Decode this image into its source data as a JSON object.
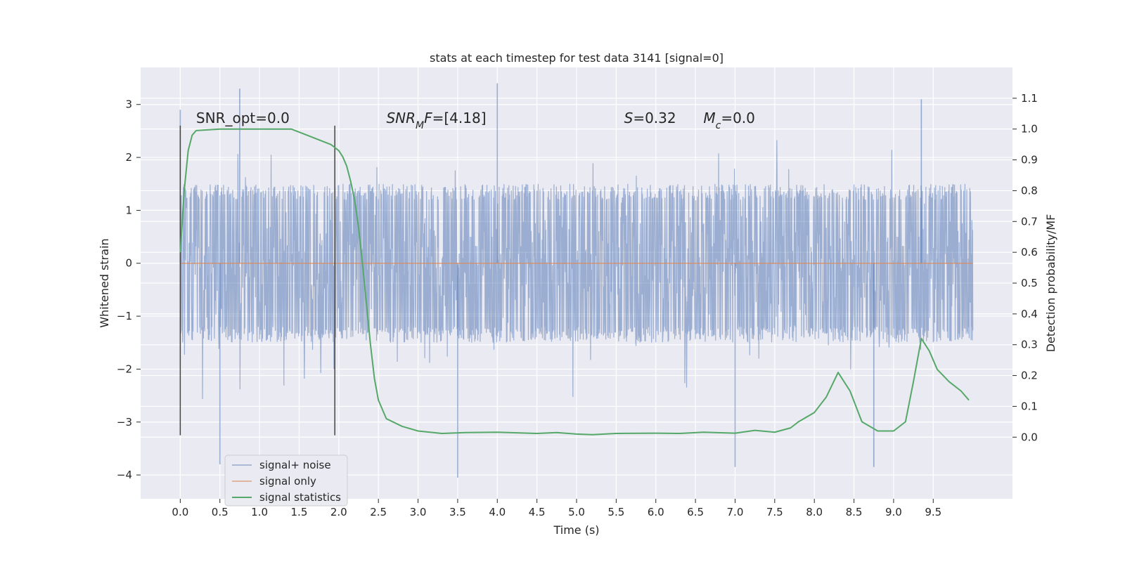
{
  "chart_data": {
    "type": "line",
    "title": "stats at each timestep for test data 3141 [signal=0]",
    "xlabel": "Time (s)",
    "ylabel_left": "Whitened strain",
    "ylabel_right": "Detection probability/MF",
    "xlim": [
      -0.5,
      10.5
    ],
    "ylim_left": [
      -4.45,
      3.7
    ],
    "ylim_right": [
      -0.2,
      1.2
    ],
    "x_ticks": [
      "0.0",
      "0.5",
      "1.0",
      "1.5",
      "2.0",
      "2.5",
      "3.0",
      "3.5",
      "4.0",
      "4.5",
      "5.0",
      "5.5",
      "6.0",
      "6.5",
      "7.0",
      "7.5",
      "8.0",
      "8.5",
      "9.0",
      "9.5"
    ],
    "y_left_ticks": [
      "3",
      "2",
      "1",
      "0",
      "−1",
      "−2",
      "−3",
      "−4"
    ],
    "y_right_ticks": [
      "1.1",
      "1.0",
      "0.9",
      "0.8",
      "0.7",
      "0.6",
      "0.5",
      "0.4",
      "0.3",
      "0.2",
      "0.1",
      "0.0"
    ],
    "grid": true,
    "legend_position": "bottom-left",
    "series": [
      {
        "name": "signal+ noise",
        "color": "#4c72b0",
        "axis": "left",
        "x_range": [
          0.0,
          10.0
        ],
        "envelope_outer": [
          -3.0,
          3.0
        ],
        "envelope_inner": [
          -1.5,
          1.5
        ],
        "notable_peaks": [
          [
            0.0,
            2.9
          ],
          [
            0.75,
            3.3
          ],
          [
            4.0,
            3.4
          ],
          [
            9.35,
            3.1
          ],
          [
            0.5,
            -3.8
          ],
          [
            3.5,
            -4.05
          ],
          [
            7.0,
            -3.85
          ],
          [
            8.75,
            -3.85
          ]
        ]
      },
      {
        "name": "signal only",
        "color": "#dd8452",
        "axis": "left",
        "x": [
          0.0,
          10.0
        ],
        "values": [
          0.0,
          0.0
        ]
      },
      {
        "name": "signal statistics",
        "color": "#55a868",
        "axis": "right",
        "x": [
          0.0,
          0.05,
          0.1,
          0.15,
          0.2,
          0.5,
          1.0,
          1.4,
          1.6,
          1.8,
          1.9,
          2.0,
          2.05,
          2.1,
          2.15,
          2.2,
          2.25,
          2.3,
          2.35,
          2.4,
          2.45,
          2.5,
          2.6,
          2.8,
          3.0,
          3.3,
          3.6,
          4.0,
          4.5,
          4.75,
          5.0,
          5.2,
          5.5,
          6.0,
          6.3,
          6.6,
          7.0,
          7.25,
          7.5,
          7.7,
          7.8,
          8.0,
          8.15,
          8.3,
          8.45,
          8.6,
          8.8,
          9.0,
          9.15,
          9.25,
          9.35,
          9.45,
          9.55,
          9.7,
          9.85,
          9.95
        ],
        "values": [
          0.6,
          0.8,
          0.93,
          0.98,
          0.995,
          1.0,
          1.0,
          1.0,
          0.98,
          0.96,
          0.95,
          0.93,
          0.91,
          0.88,
          0.83,
          0.77,
          0.68,
          0.56,
          0.43,
          0.3,
          0.19,
          0.12,
          0.06,
          0.035,
          0.02,
          0.012,
          0.015,
          0.016,
          0.012,
          0.015,
          0.01,
          0.008,
          0.012,
          0.013,
          0.012,
          0.016,
          0.013,
          0.022,
          0.016,
          0.03,
          0.05,
          0.08,
          0.13,
          0.21,
          0.15,
          0.05,
          0.02,
          0.02,
          0.05,
          0.18,
          0.32,
          0.28,
          0.22,
          0.18,
          0.15,
          0.12
        ]
      }
    ],
    "vertical_lines_x": [
      0.0,
      1.95
    ],
    "annotations": [
      {
        "x": 0.2,
        "text": "SNR_opt=0.0",
        "style": "normal"
      },
      {
        "x": 2.6,
        "text": "SNR_MF=[4.18]",
        "style": "mf"
      },
      {
        "x": 5.6,
        "text": "S=0.32",
        "style": "s"
      },
      {
        "x": 6.6,
        "text": "M_c=0.0",
        "style": "mc"
      }
    ],
    "annotation_y_left": 2.65
  }
}
